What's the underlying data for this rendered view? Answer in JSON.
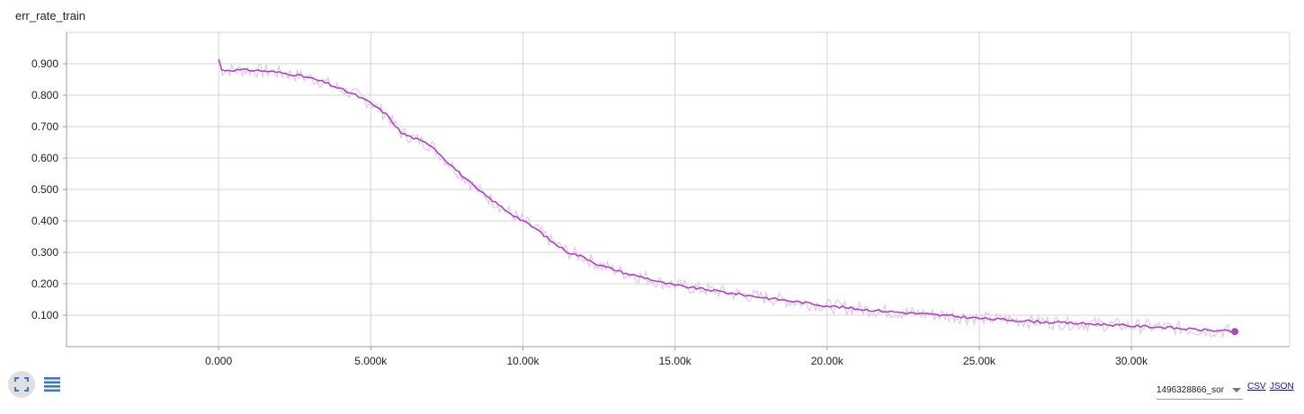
{
  "header": {
    "title": "err_rate_train"
  },
  "controls": {
    "fullscreen_icon": "fullscreen-icon",
    "list_icon": "list-icon",
    "run_value": "1496328866_sor",
    "csv_label": "CSV",
    "json_label": "JSON"
  },
  "colors": {
    "line": "#ab47bc",
    "raw": "#e6c6ee",
    "grid": "#d4d4d4",
    "accent": "#3d78c5"
  },
  "chart_data": {
    "type": "line",
    "title": "err_rate_train",
    "xlabel": "",
    "ylabel": "",
    "xlim": [
      -5000,
      35200
    ],
    "ylim": [
      0,
      1.0
    ],
    "grid": true,
    "x_ticks": [
      0,
      5000,
      10000,
      15000,
      20000,
      25000,
      30000
    ],
    "x_tick_labels": [
      "0.000",
      "5.000k",
      "10.00k",
      "15.00k",
      "20.00k",
      "25.00k",
      "30.00k"
    ],
    "y_ticks": [
      0.1,
      0.2,
      0.3,
      0.4,
      0.5,
      0.6,
      0.7,
      0.8,
      0.9
    ],
    "y_tick_labels": [
      "0.100",
      "0.200",
      "0.300",
      "0.400",
      "0.500",
      "0.600",
      "0.700",
      "0.800",
      "0.900"
    ],
    "series": [
      {
        "x": [
          0,
          100,
          500,
          1000,
          1500,
          2000,
          2500,
          3000,
          3500,
          4000,
          4500,
          5000,
          5500,
          6000,
          6500,
          7000,
          7500,
          8000,
          8500,
          9000,
          9500,
          10000,
          10500,
          11000,
          11500,
          12000,
          12500,
          13000,
          13500,
          14000,
          14500,
          15000,
          16000,
          17000,
          18000,
          19000,
          20000,
          21000,
          22000,
          23000,
          24000,
          25000,
          26000,
          27000,
          28000,
          29000,
          30000,
          31000,
          32000,
          33000,
          33400
        ],
        "y": [
          0.915,
          0.88,
          0.88,
          0.88,
          0.877,
          0.872,
          0.865,
          0.855,
          0.84,
          0.82,
          0.8,
          0.775,
          0.74,
          0.68,
          0.66,
          0.64,
          0.59,
          0.545,
          0.5,
          0.465,
          0.43,
          0.4,
          0.37,
          0.33,
          0.3,
          0.285,
          0.26,
          0.245,
          0.23,
          0.22,
          0.205,
          0.195,
          0.182,
          0.168,
          0.155,
          0.143,
          0.13,
          0.12,
          0.112,
          0.105,
          0.098,
          0.09,
          0.085,
          0.079,
          0.075,
          0.071,
          0.066,
          0.062,
          0.055,
          0.05,
          0.048
        ]
      }
    ]
  }
}
